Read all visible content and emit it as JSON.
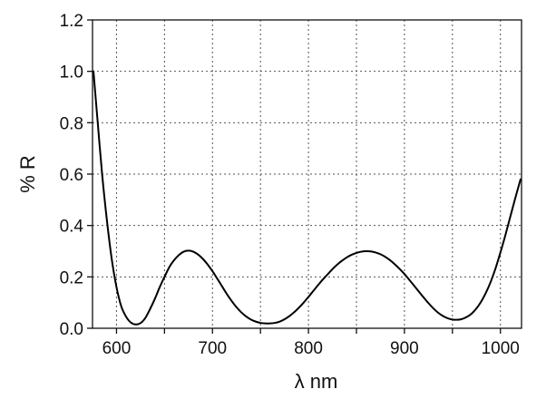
{
  "chart_data": {
    "type": "line",
    "title": "",
    "xlabel": "λ nm",
    "ylabel": "% R",
    "xlim": [
      575,
      1022
    ],
    "ylim": [
      0.0,
      1.2
    ],
    "xticks": [
      600,
      700,
      800,
      900,
      1000
    ],
    "xtick_labels": [
      "600",
      "700",
      "800",
      "900",
      "1000"
    ],
    "yticks": [
      0.0,
      0.2,
      0.4,
      0.6,
      0.8,
      1.0,
      1.2
    ],
    "ytick_labels": [
      "0.0",
      "0.2",
      "0.4",
      "0.6",
      "0.8",
      "1.0",
      "1.2"
    ],
    "x_grid": [
      600,
      650,
      700,
      750,
      800,
      850,
      900,
      950,
      1000
    ],
    "y_grid": [
      0.2,
      0.4,
      0.6,
      0.8,
      1.0,
      1.2
    ],
    "grid": true,
    "line_color": "#000000",
    "series": [
      {
        "x": [
          576,
          580,
          585,
          590,
          595,
          600,
          605,
          610,
          615,
          620,
          625,
          630,
          635,
          640,
          645,
          650,
          655,
          660,
          665,
          670,
          675,
          680,
          685,
          690,
          695,
          700,
          705,
          710,
          715,
          720,
          725,
          730,
          735,
          740,
          745,
          750,
          755,
          760,
          765,
          770,
          775,
          780,
          785,
          790,
          795,
          800,
          805,
          810,
          815,
          820,
          825,
          830,
          835,
          840,
          845,
          850,
          855,
          860,
          865,
          870,
          875,
          880,
          885,
          890,
          895,
          900,
          905,
          910,
          915,
          920,
          925,
          930,
          935,
          940,
          945,
          950,
          955,
          960,
          965,
          970,
          975,
          980,
          985,
          990,
          995,
          1000,
          1005,
          1010,
          1015,
          1021
        ],
        "y": [
          1.0,
          0.82,
          0.6,
          0.42,
          0.27,
          0.16,
          0.085,
          0.045,
          0.022,
          0.015,
          0.02,
          0.04,
          0.075,
          0.115,
          0.16,
          0.2,
          0.238,
          0.265,
          0.285,
          0.298,
          0.302,
          0.298,
          0.287,
          0.27,
          0.248,
          0.222,
          0.193,
          0.163,
          0.133,
          0.106,
          0.082,
          0.062,
          0.046,
          0.034,
          0.026,
          0.021,
          0.019,
          0.019,
          0.021,
          0.026,
          0.035,
          0.047,
          0.062,
          0.08,
          0.1,
          0.122,
          0.145,
          0.168,
          0.19,
          0.21,
          0.23,
          0.248,
          0.263,
          0.276,
          0.286,
          0.293,
          0.298,
          0.3,
          0.299,
          0.295,
          0.288,
          0.278,
          0.265,
          0.249,
          0.231,
          0.211,
          0.189,
          0.166,
          0.143,
          0.12,
          0.098,
          0.078,
          0.061,
          0.048,
          0.039,
          0.034,
          0.033,
          0.036,
          0.044,
          0.057,
          0.077,
          0.104,
          0.139,
          0.182,
          0.234,
          0.295,
          0.36,
          0.43,
          0.5,
          0.58
        ]
      }
    ]
  }
}
